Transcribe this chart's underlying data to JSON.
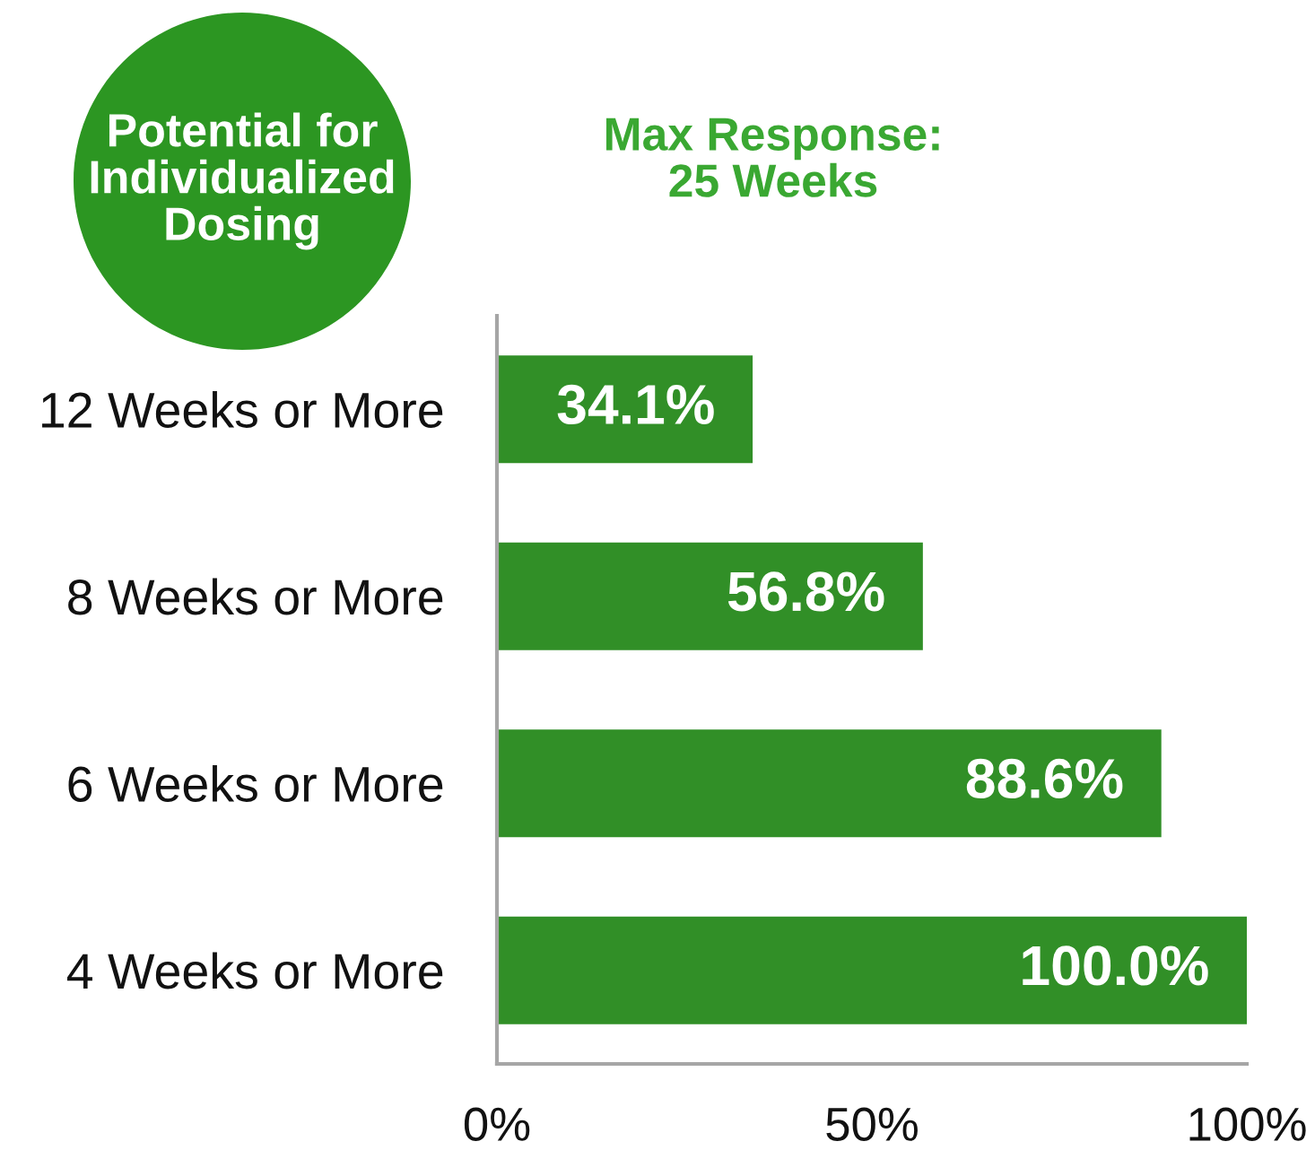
{
  "chart_data": {
    "type": "bar",
    "orientation": "horizontal",
    "title": "Max Response:\n25 Weeks",
    "annotations": [
      "Potential for\nIndividualized\nDosing"
    ],
    "categories": [
      "12 Weeks or More",
      "8 Weeks or More",
      "6 Weeks or More",
      "4 Weeks or More"
    ],
    "values": [
      34.1,
      56.8,
      88.6,
      100.0
    ],
    "color": "#318f27",
    "value_labels": [
      "34.1%",
      "56.8%",
      "88.6%",
      "100.0%"
    ],
    "xlim": [
      0,
      100
    ],
    "xticks": [
      {
        "value": 0,
        "label": "0%"
      },
      {
        "value": 50,
        "label": "50%"
      },
      {
        "value": 100,
        "label": "100%"
      }
    ],
    "grid": false
  }
}
